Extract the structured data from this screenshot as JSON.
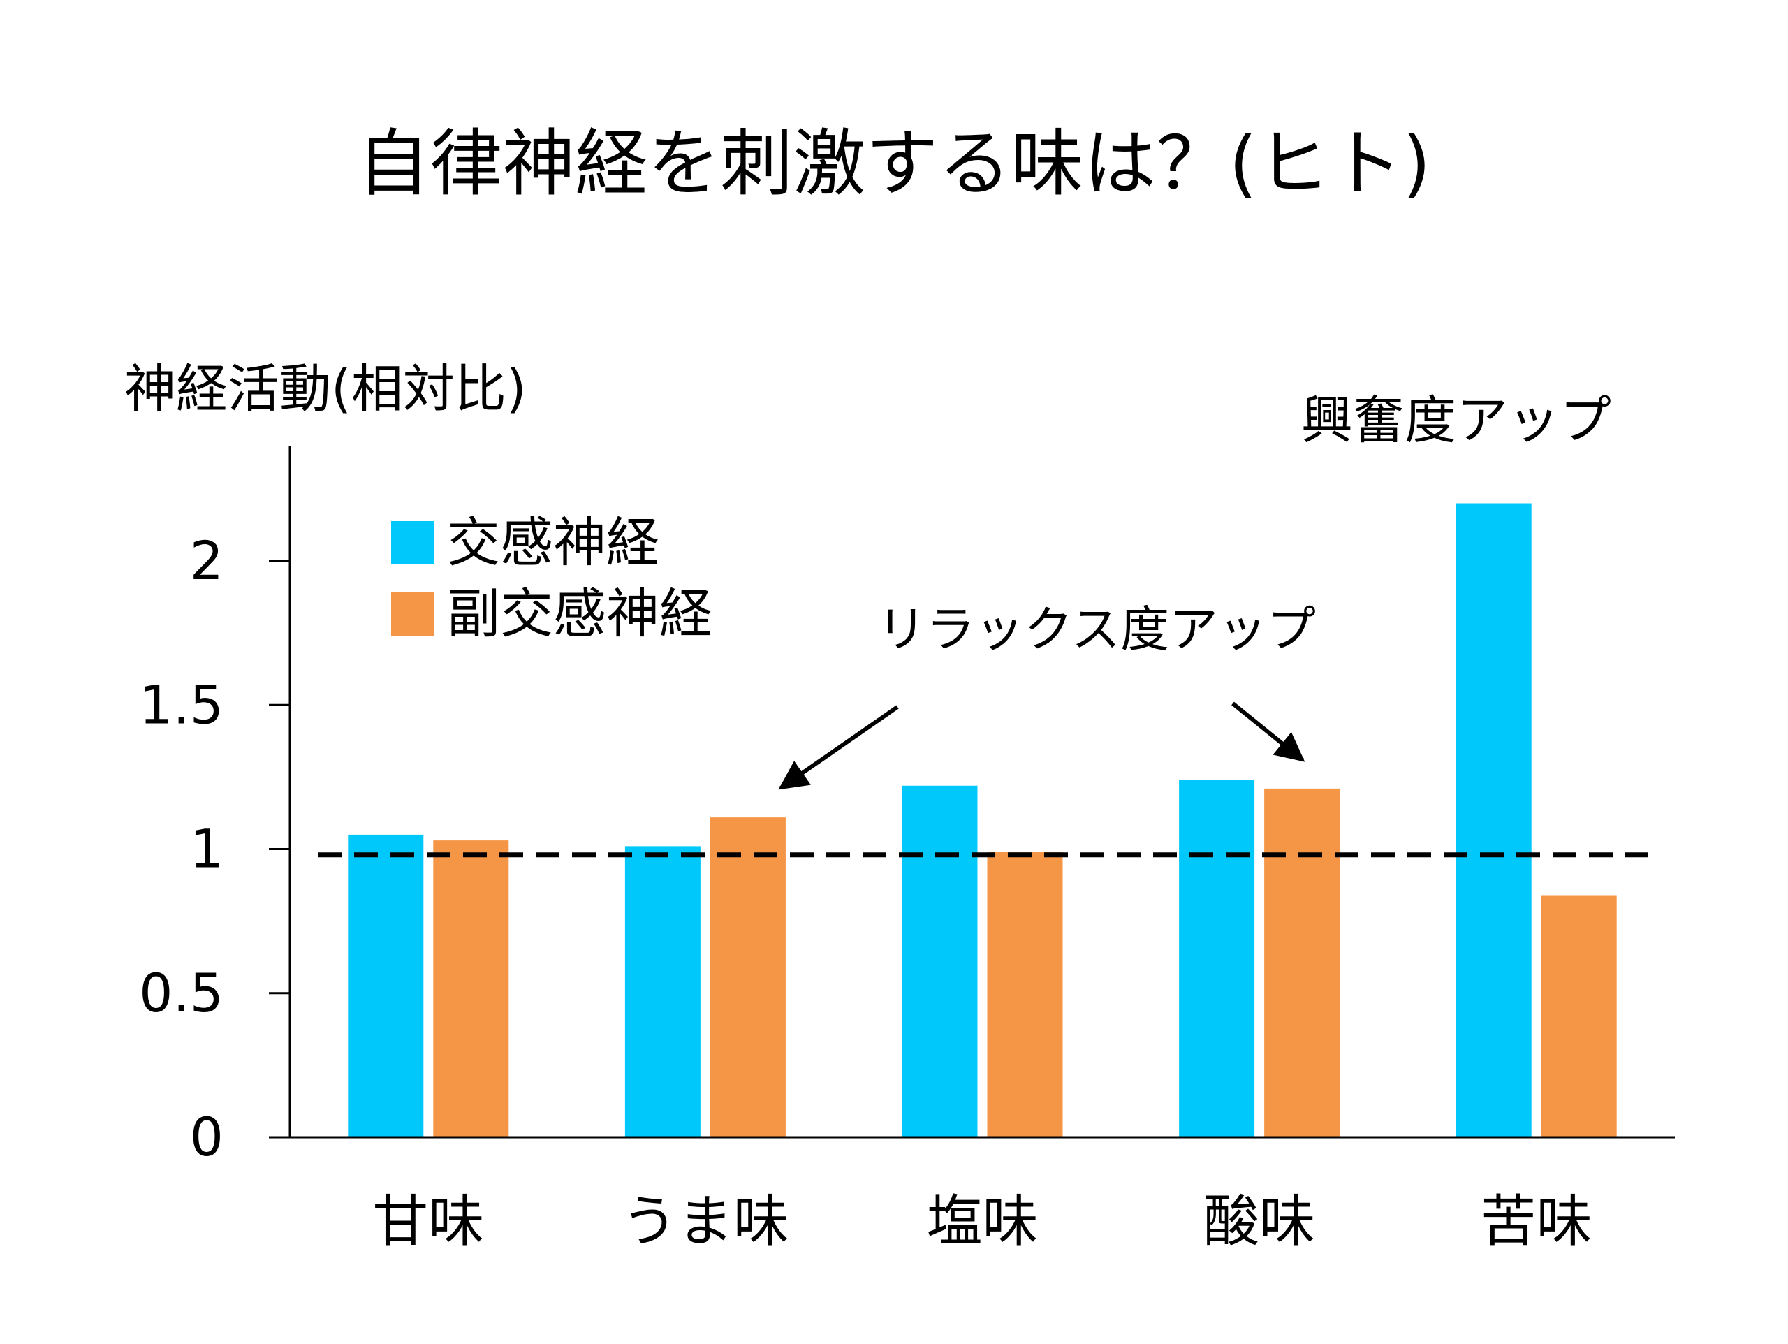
{
  "chart_data": {
    "type": "bar",
    "title": "自律神経を刺激する味は？(ヒト)",
    "ylabel": "神経活動(相対比)",
    "xlabel": "",
    "categories": [
      "甘味",
      "うま味",
      "塩味",
      "酸味",
      "苦味"
    ],
    "series": [
      {
        "name": "交感神経",
        "color": "#00c8fa",
        "values": [
          1.05,
          1.01,
          1.22,
          1.24,
          2.2
        ]
      },
      {
        "name": "副交感神経",
        "color": "#f59646",
        "values": [
          1.03,
          1.11,
          0.99,
          1.21,
          0.84
        ]
      }
    ],
    "ylim": [
      0,
      2.4
    ],
    "yticks": [
      0,
      0.5,
      1,
      1.5,
      2
    ],
    "ytick_labels": [
      "0",
      "0.5",
      "1",
      "1.5",
      "2"
    ],
    "reference_line": {
      "value": 0.98,
      "style": "dashed"
    },
    "grid": false,
    "legend_position": "top-left",
    "annotations": {
      "relax": "リラックス度アップ",
      "excite": "興奮度アップ"
    }
  }
}
